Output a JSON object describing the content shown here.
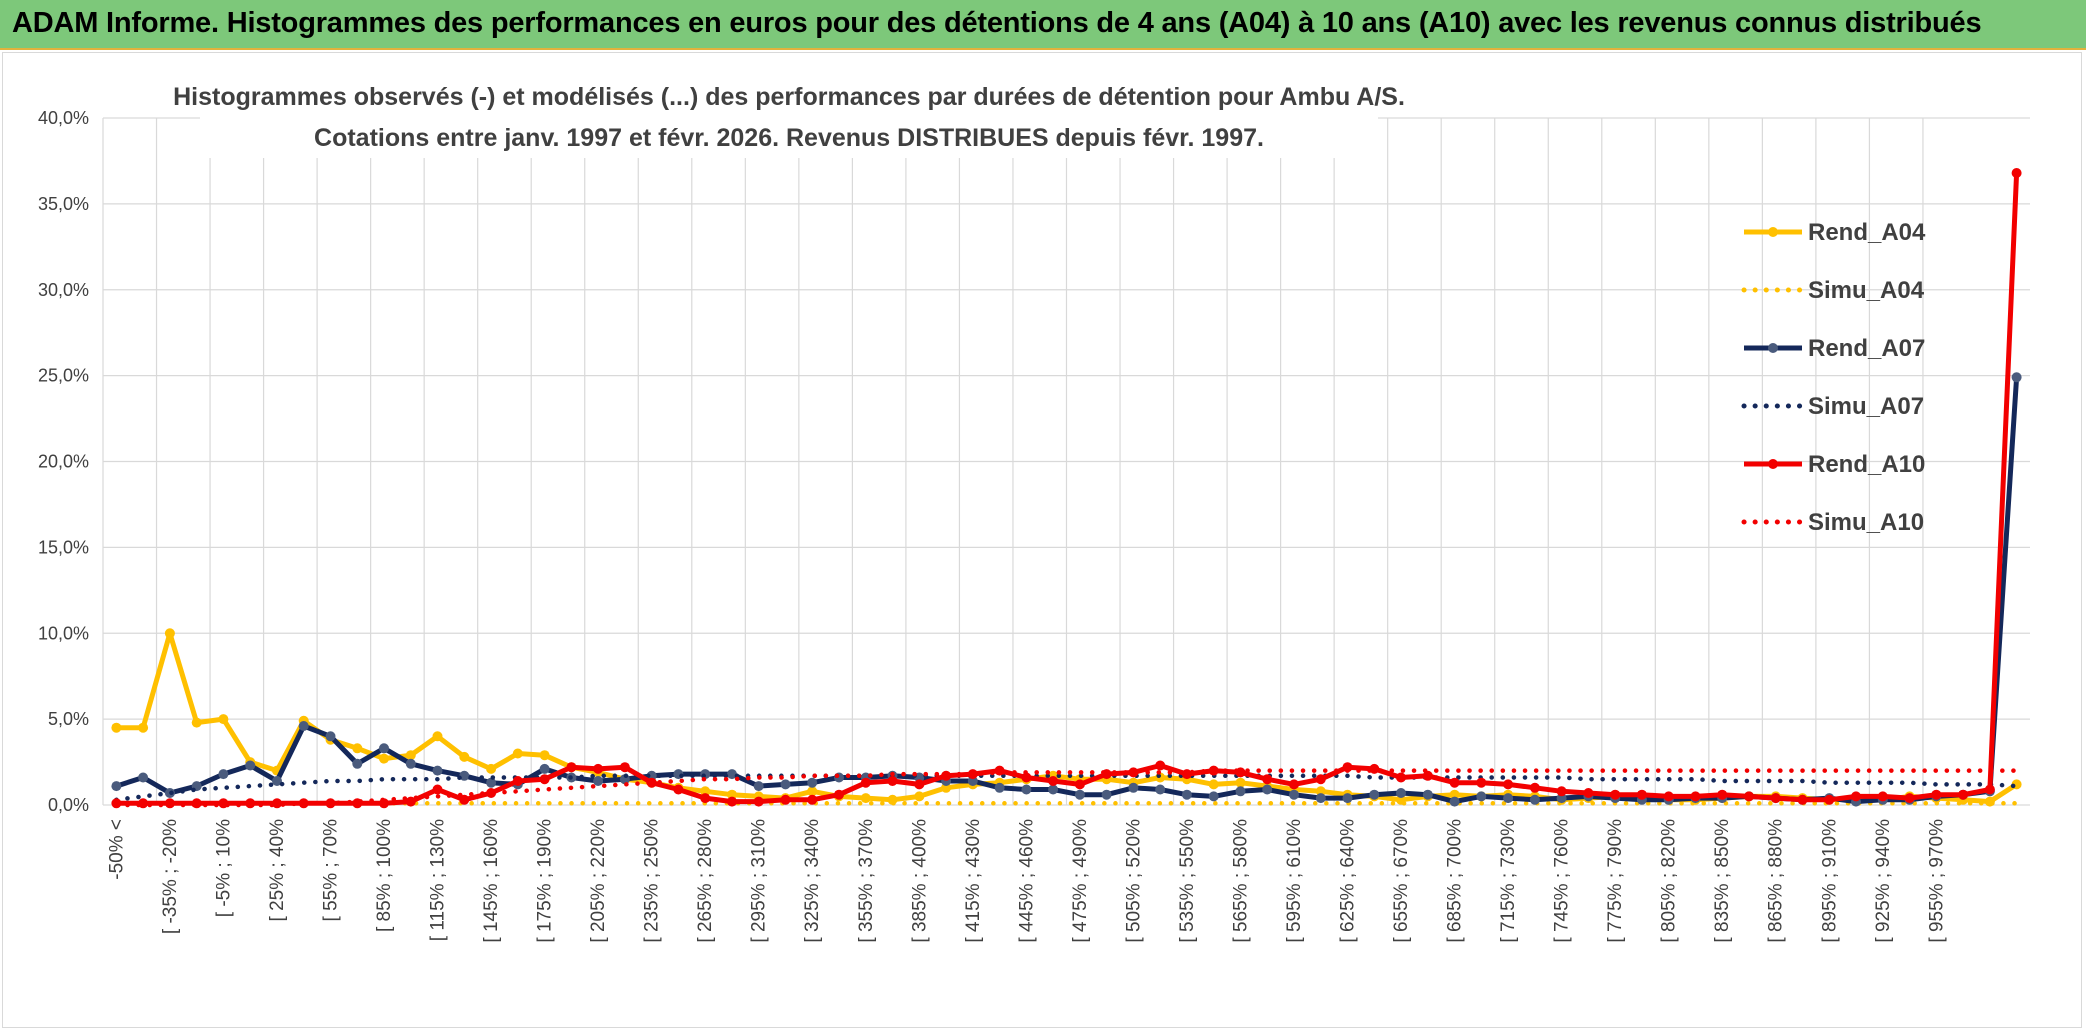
{
  "banner": {
    "title": "ADAM Informe. Histogrammes des performances en euros pour des détentions de 4 ans (A04) à 10 ans (A10) avec les revenus connus distribués"
  },
  "chart_data": {
    "type": "line",
    "title": "Histogrammes observés (-) et modélisés (...) des performances par durées de détention pour Ambu A/S.",
    "subtitle": "Cotations entre janv. 1997 et févr. 2026. Revenus DISTRIBUES depuis févr. 1997.",
    "xlabel": "",
    "ylabel": "",
    "ylim": [
      0,
      40
    ],
    "y_ticks": [
      "0,0%",
      "5,0%",
      "10,0%",
      "15,0%",
      "20,0%",
      "25,0%",
      "30,0%",
      "35,0%",
      "40,0%"
    ],
    "y_tick_values": [
      0,
      5,
      10,
      15,
      20,
      25,
      30,
      35,
      40
    ],
    "grid": true,
    "legend_position": "top-right",
    "num_points": 72,
    "x_tick_labels": [
      "-50% <",
      "[ -35% ; -20%",
      "[ -5% ; 10%",
      "[ 25% ; 40%",
      "[ 55% ; 70%",
      "[ 85% ; 100%",
      "[ 115% ; 130%",
      "[ 145% ; 160%",
      "[ 175% ; 190%",
      "[ 205% ; 220%",
      "[ 235% ; 250%",
      "[ 265% ; 280%",
      "[ 295% ; 310%",
      "[ 325% ; 340%",
      "[ 355% ; 370%",
      "[ 385% ; 400%",
      "[ 415% ; 430%",
      "[ 445% ; 460%",
      "[ 475% ; 490%",
      "[ 505% ; 520%",
      "[ 535% ; 550%",
      "[ 565% ; 580%",
      "[ 595% ; 610%",
      "[ 625% ; 640%",
      "[ 655% ; 670%",
      "[ 685% ; 700%",
      "[ 715% ; 730%",
      "[ 745% ; 760%",
      "[ 775% ; 790%",
      "[ 805% ; 820%",
      "[ 835% ; 850%",
      "[ 865% ; 880%",
      "[ 895% ; 910%",
      "[ 925% ; 940%",
      "[ 955% ; 970%"
    ],
    "series": [
      {
        "name": "Rend_A04",
        "style": "solid",
        "color": "#ffc000",
        "values": [
          4.5,
          4.5,
          10.0,
          4.8,
          5.0,
          2.5,
          2.0,
          4.9,
          3.8,
          3.3,
          2.7,
          2.9,
          4.0,
          2.8,
          2.1,
          3.0,
          2.9,
          2.2,
          1.9,
          1.5,
          1.3,
          1.0,
          0.8,
          0.6,
          0.5,
          0.4,
          0.8,
          0.5,
          0.4,
          0.3,
          0.5,
          1.0,
          1.2,
          1.3,
          1.5,
          1.7,
          1.5,
          1.5,
          1.3,
          1.6,
          1.5,
          1.2,
          1.3,
          1.1,
          0.9,
          0.8,
          0.6,
          0.5,
          0.3,
          0.5,
          0.6,
          0.5,
          0.6,
          0.5,
          0.3,
          0.4,
          0.5,
          0.4,
          0.3,
          0.3,
          0.4,
          0.5,
          0.5,
          0.4,
          0.3,
          0.4,
          0.3,
          0.5,
          0.4,
          0.3,
          0.2,
          1.2
        ]
      },
      {
        "name": "Simu_A04",
        "style": "dotted",
        "color": "#ffc000",
        "values": [
          0.1,
          0.1,
          0.1,
          0.1,
          0.1,
          0.1,
          0.1,
          0.1,
          0.1,
          0.1,
          0.1,
          0.1,
          0.1,
          0.1,
          0.1,
          0.1,
          0.1,
          0.1,
          0.1,
          0.1,
          0.1,
          0.1,
          0.1,
          0.1,
          0.1,
          0.1,
          0.1,
          0.1,
          0.1,
          0.1,
          0.1,
          0.1,
          0.1,
          0.1,
          0.1,
          0.1,
          0.1,
          0.1,
          0.1,
          0.1,
          0.1,
          0.1,
          0.1,
          0.1,
          0.1,
          0.1,
          0.1,
          0.1,
          0.1,
          0.1,
          0.1,
          0.1,
          0.1,
          0.1,
          0.1,
          0.1,
          0.1,
          0.1,
          0.1,
          0.1,
          0.1,
          0.1,
          0.1,
          0.1,
          0.1,
          0.1,
          0.1,
          0.1,
          0.1,
          0.1,
          0.1,
          0.1
        ]
      },
      {
        "name": "Rend_A07",
        "style": "solid",
        "color": "#14285a",
        "values": [
          1.1,
          1.6,
          0.7,
          1.1,
          1.8,
          2.3,
          1.4,
          4.6,
          4.0,
          2.4,
          3.3,
          2.4,
          2.0,
          1.7,
          1.3,
          1.2,
          2.1,
          1.6,
          1.4,
          1.5,
          1.7,
          1.8,
          1.8,
          1.8,
          1.1,
          1.2,
          1.3,
          1.6,
          1.6,
          1.7,
          1.6,
          1.4,
          1.4,
          1.0,
          0.9,
          0.9,
          0.6,
          0.6,
          1.0,
          0.9,
          0.6,
          0.5,
          0.8,
          0.9,
          0.6,
          0.4,
          0.4,
          0.6,
          0.7,
          0.6,
          0.2,
          0.5,
          0.4,
          0.3,
          0.4,
          0.5,
          0.4,
          0.3,
          0.3,
          0.4,
          0.4,
          0.5,
          0.4,
          0.3,
          0.4,
          0.2,
          0.3,
          0.3,
          0.5,
          0.6,
          0.8,
          24.9
        ]
      },
      {
        "name": "Simu_A07",
        "style": "dotted",
        "color": "#14285a",
        "values": [
          0.3,
          0.5,
          0.7,
          0.9,
          1.0,
          1.1,
          1.2,
          1.3,
          1.4,
          1.4,
          1.5,
          1.5,
          1.5,
          1.6,
          1.6,
          1.6,
          1.6,
          1.6,
          1.7,
          1.7,
          1.7,
          1.7,
          1.7,
          1.7,
          1.7,
          1.7,
          1.7,
          1.7,
          1.7,
          1.7,
          1.7,
          1.7,
          1.7,
          1.7,
          1.7,
          1.7,
          1.7,
          1.7,
          1.7,
          1.7,
          1.7,
          1.7,
          1.7,
          1.7,
          1.7,
          1.7,
          1.7,
          1.6,
          1.6,
          1.6,
          1.6,
          1.6,
          1.6,
          1.6,
          1.6,
          1.5,
          1.5,
          1.5,
          1.5,
          1.5,
          1.4,
          1.4,
          1.4,
          1.4,
          1.3,
          1.3,
          1.3,
          1.3,
          1.2,
          1.2,
          1.2,
          1.1
        ]
      },
      {
        "name": "Rend_A10",
        "style": "solid",
        "color": "#f20000",
        "values": [
          0.1,
          0.1,
          0.1,
          0.1,
          0.1,
          0.1,
          0.1,
          0.1,
          0.1,
          0.1,
          0.1,
          0.2,
          0.9,
          0.3,
          0.7,
          1.4,
          1.5,
          2.2,
          2.1,
          2.2,
          1.3,
          0.9,
          0.4,
          0.2,
          0.2,
          0.3,
          0.3,
          0.6,
          1.3,
          1.4,
          1.2,
          1.7,
          1.8,
          2.0,
          1.6,
          1.4,
          1.2,
          1.8,
          1.9,
          2.3,
          1.8,
          2.0,
          1.9,
          1.5,
          1.2,
          1.5,
          2.2,
          2.1,
          1.6,
          1.7,
          1.3,
          1.3,
          1.2,
          1.0,
          0.8,
          0.7,
          0.6,
          0.6,
          0.5,
          0.5,
          0.6,
          0.5,
          0.4,
          0.3,
          0.3,
          0.5,
          0.5,
          0.4,
          0.6,
          0.6,
          0.9,
          36.8
        ]
      },
      {
        "name": "Simu_A10",
        "style": "dotted",
        "color": "#f20000",
        "values": [
          0.0,
          0.0,
          0.0,
          0.0,
          0.0,
          0.0,
          0.0,
          0.1,
          0.1,
          0.2,
          0.3,
          0.4,
          0.5,
          0.6,
          0.7,
          0.8,
          0.9,
          1.0,
          1.1,
          1.2,
          1.3,
          1.4,
          1.5,
          1.5,
          1.6,
          1.6,
          1.7,
          1.7,
          1.7,
          1.8,
          1.8,
          1.8,
          1.8,
          1.9,
          1.9,
          1.9,
          1.9,
          1.9,
          1.9,
          1.9,
          1.9,
          2.0,
          2.0,
          2.0,
          2.0,
          2.0,
          2.0,
          2.0,
          2.0,
          2.0,
          2.0,
          2.0,
          2.0,
          2.0,
          2.0,
          2.0,
          2.0,
          2.0,
          2.0,
          2.0,
          2.0,
          2.0,
          2.0,
          2.0,
          2.0,
          2.0,
          2.0,
          2.0,
          2.0,
          2.0,
          2.0,
          2.0
        ]
      }
    ]
  }
}
